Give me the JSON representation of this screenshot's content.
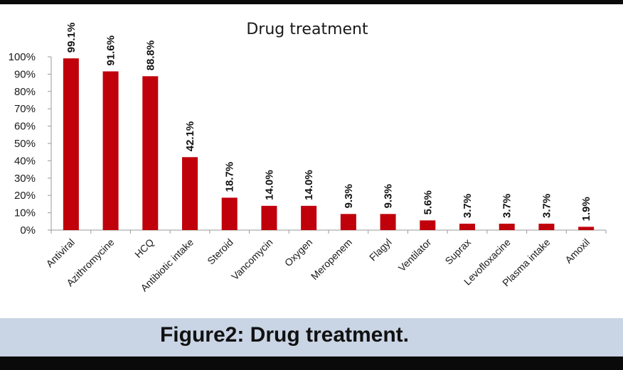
{
  "caption": "Figure2: Drug treatment.",
  "colors": {
    "bar": "#c0000b",
    "axis": "#9a9a9a",
    "panel": "#ffffff",
    "caption_band": "#c9d4e4"
  },
  "chart_data": {
    "type": "bar",
    "title": "Drug treatment",
    "xlabel": "",
    "ylabel": "",
    "ylim": [
      0,
      100
    ],
    "yticks": [
      "0%",
      "10%",
      "20%",
      "30%",
      "40%",
      "50%",
      "60%",
      "70%",
      "80%",
      "90%",
      "100%"
    ],
    "grid": false,
    "legend": "none",
    "categories": [
      "Antiviral",
      "Azithromycine",
      "HCQ",
      "Antibiotic intake",
      "Steroid",
      "Vancomycin",
      "Oxygen",
      "Meropenem",
      "Flagyl",
      "Ventilator",
      "Suprax",
      "Levofloxacine",
      "Plasma intake",
      "Amoxil"
    ],
    "values": [
      99.1,
      91.6,
      88.8,
      42.1,
      18.7,
      14.0,
      14.0,
      9.3,
      9.3,
      5.6,
      3.7,
      3.7,
      3.7,
      1.9
    ],
    "data_labels": [
      "99.1%",
      "91.6%",
      "88.8%",
      "42.1%",
      "18.7%",
      "14.0%",
      "14.0%",
      "9.3%",
      "9.3%",
      "5.6%",
      "3.7%",
      "3.7%",
      "3.7%",
      "1.9%"
    ]
  }
}
